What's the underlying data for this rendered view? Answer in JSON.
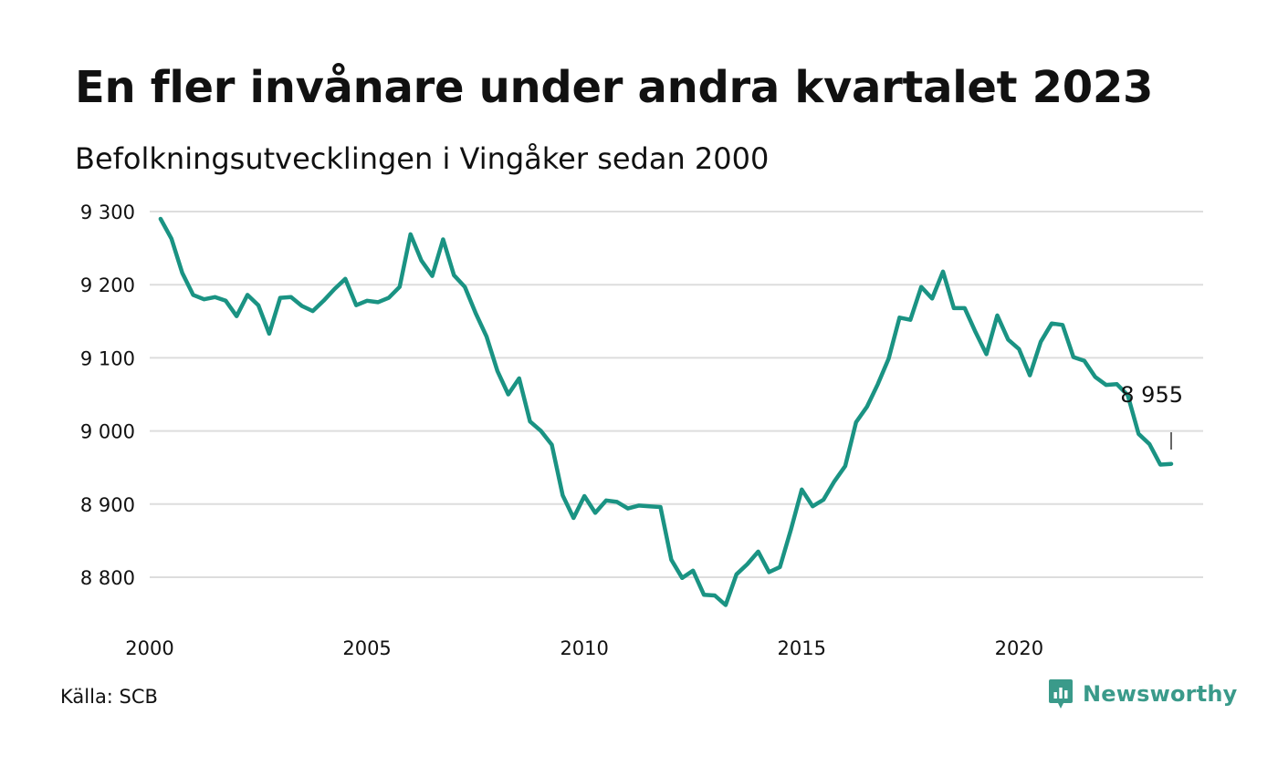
{
  "header": {
    "title": "En fler invånare under andra kvartalet 2023",
    "subtitle": "Befolkningsutvecklingen i Vingåker sedan 2000"
  },
  "footer": {
    "source": "Källa: SCB",
    "brand": "Newsworthy"
  },
  "colors": {
    "line": "#1a9383",
    "grid": "#dddddd",
    "brand": "#3a9a8a",
    "text": "#111111"
  },
  "chart_data": {
    "type": "line",
    "title": "En fler invånare under andra kvartalet 2023",
    "subtitle": "Befolkningsutvecklingen i Vingåker sedan 2000",
    "xlabel": "",
    "ylabel": "",
    "x_ticks": [
      2000,
      2005,
      2010,
      2015,
      2020
    ],
    "x_tick_labels": [
      "2000",
      "2005",
      "2010",
      "2015",
      "2020"
    ],
    "y_ticks": [
      8800,
      8900,
      9000,
      9100,
      9200,
      9300
    ],
    "y_tick_labels": [
      "8 800",
      "8 900",
      "9 000",
      "9 100",
      "9 200",
      "9 300"
    ],
    "xlim": [
      2000,
      2024.35
    ],
    "ylim": [
      8750,
      9300
    ],
    "grid": true,
    "end_label": "8 955",
    "series": [
      {
        "name": "",
        "x": [
          2000.25,
          2000.5,
          2000.75,
          2001.0,
          2001.25,
          2001.5,
          2001.75,
          2002.0,
          2002.25,
          2002.5,
          2002.75,
          2003.0,
          2003.25,
          2003.5,
          2003.75,
          2004.0,
          2004.25,
          2004.5,
          2004.75,
          2005.0,
          2005.25,
          2005.5,
          2005.75,
          2006.0,
          2006.25,
          2006.5,
          2006.75,
          2007.0,
          2007.25,
          2007.5,
          2007.75,
          2008.0,
          2008.25,
          2008.5,
          2008.75,
          2009.0,
          2009.25,
          2009.5,
          2009.75,
          2010.0,
          2010.25,
          2010.5,
          2010.75,
          2011.0,
          2011.25,
          2011.5,
          2011.75,
          2012.0,
          2012.25,
          2012.5,
          2012.75,
          2013.0,
          2013.25,
          2013.5,
          2013.75,
          2014.0,
          2014.25,
          2014.5,
          2014.75,
          2015.0,
          2015.25,
          2015.5,
          2015.75,
          2016.0,
          2016.25,
          2016.5,
          2016.75,
          2017.0,
          2017.25,
          2017.5,
          2017.75,
          2018.0,
          2018.25,
          2018.5,
          2018.75,
          2019.0,
          2019.25,
          2019.5,
          2019.75,
          2020.0,
          2020.25,
          2020.5,
          2020.75,
          2021.0,
          2021.25,
          2021.5,
          2021.75,
          2022.0,
          2022.25,
          2022.5,
          2022.75,
          2023.0,
          2023.25,
          2023.5
        ],
        "values": [
          9290,
          9263,
          9216,
          9186,
          9180,
          9183,
          9178,
          9157,
          9186,
          9172,
          9133,
          9182,
          9183,
          9171,
          9164,
          9178,
          9194,
          9208,
          9172,
          9178,
          9176,
          9182,
          9197,
          9269,
          9233,
          9212,
          9262,
          9213,
          9197,
          9161,
          9129,
          9082,
          9050,
          9072,
          9013,
          9000,
          8981,
          8912,
          8881,
          8911,
          8888,
          8905,
          8903,
          8894,
          8898,
          8897,
          8896,
          8824,
          8799,
          8809,
          8776,
          8775,
          8762,
          8804,
          8818,
          8835,
          8807,
          8814,
          8865,
          8920,
          8897,
          8906,
          8931,
          8952,
          9012,
          9033,
          9064,
          9099,
          9155,
          9152,
          9197,
          9181,
          9218,
          9168,
          9168,
          9135,
          9105,
          9158,
          9125,
          9112,
          9076,
          9122,
          9147,
          9145,
          9101,
          9096,
          9074,
          9063,
          9064,
          9049,
          8996,
          8982,
          8954,
          8955
        ]
      }
    ]
  }
}
